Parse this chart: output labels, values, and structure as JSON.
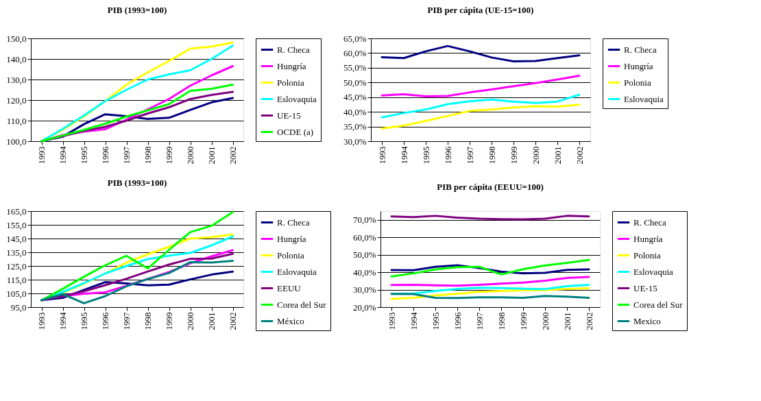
{
  "chart_data": [
    {
      "type": "line",
      "title": "PIB  (1993=100)",
      "categories": [
        "1993",
        "1994",
        "1995",
        "1996",
        "1997",
        "1998",
        "1999",
        "2000",
        "2001",
        "2002"
      ],
      "ylim": [
        100,
        150
      ],
      "yticks": [
        {
          "value": 100,
          "label": "100,0"
        },
        {
          "value": 110,
          "label": "110,0"
        },
        {
          "value": 120,
          "label": "120,0"
        },
        {
          "value": 130,
          "label": "130,0"
        },
        {
          "value": 140,
          "label": "140,0"
        },
        {
          "value": 150,
          "label": "150,0"
        }
      ],
      "grid": "y",
      "legend": "right",
      "marker": "none",
      "line_style": "solid",
      "series": [
        {
          "name": "R. Checa",
          "color": "#000080",
          "values": [
            100,
            102.2,
            108.3,
            113.1,
            112.2,
            110.8,
            111.4,
            115.2,
            118.9,
            121.0
          ]
        },
        {
          "name": "Hungría",
          "color": "#ff00ff",
          "values": [
            100,
            103.0,
            104.7,
            105.8,
            110.5,
            115.5,
            120.5,
            127.0,
            132.0,
            136.5
          ]
        },
        {
          "name": "Polonia",
          "color": "#ffff00",
          "values": [
            100,
            105.5,
            112.0,
            119.5,
            127.5,
            133.5,
            139.0,
            145.0,
            146.0,
            148.0
          ]
        },
        {
          "name": "Eslovaquia",
          "color": "#00ffff",
          "values": [
            100,
            106.0,
            112.5,
            119.5,
            125.0,
            130.0,
            132.5,
            134.5,
            140.0,
            146.5
          ]
        },
        {
          "name": "UE-15",
          "color": "#800080",
          "values": [
            100,
            102.5,
            105.0,
            107.0,
            110.0,
            113.5,
            116.5,
            120.5,
            122.5,
            124.0
          ]
        },
        {
          "name": "OCDE (a)",
          "color": "#00ff00",
          "values": [
            100,
            102.8,
            105.5,
            108.5,
            112.0,
            115.0,
            118.0,
            124.5,
            125.5,
            127.5
          ]
        }
      ]
    },
    {
      "type": "line",
      "title": "PIB per cápita  (UE-15=100)",
      "categories": [
        "1993",
        "1994",
        "1995",
        "1996",
        "1997",
        "1998",
        "1999",
        "2000",
        "2001",
        "2002"
      ],
      "ylim": [
        30,
        65
      ],
      "yticks": [
        {
          "value": 30,
          "label": "30,0%"
        },
        {
          "value": 35,
          "label": "35,0%"
        },
        {
          "value": 40,
          "label": "40,0%"
        },
        {
          "value": 45,
          "label": "45,0%"
        },
        {
          "value": 50,
          "label": "50,0%"
        },
        {
          "value": 55,
          "label": "55,0%"
        },
        {
          "value": 60,
          "label": "60,0%"
        },
        {
          "value": 65,
          "label": "65,0%"
        }
      ],
      "grid": "y",
      "legend": "right",
      "marker": "none",
      "line_style": "solid",
      "series": [
        {
          "name": "R. Checa",
          "color": "#000080",
          "values": [
            58.6,
            58.3,
            60.6,
            62.4,
            60.6,
            58.5,
            57.2,
            57.3,
            58.3,
            59.2
          ]
        },
        {
          "name": "Hungría",
          "color": "#ff00ff",
          "values": [
            45.6,
            46.0,
            45.3,
            45.4,
            46.6,
            47.6,
            48.7,
            49.8,
            51.0,
            52.3
          ]
        },
        {
          "name": "Polonia",
          "color": "#ffff00",
          "values": [
            34.3,
            35.3,
            36.9,
            38.6,
            40.3,
            40.8,
            41.5,
            41.9,
            41.8,
            42.4
          ]
        },
        {
          "name": "Eslovaquia",
          "color": "#00ffff",
          "values": [
            38.1,
            39.6,
            40.8,
            42.6,
            43.6,
            44.2,
            43.5,
            43.0,
            43.5,
            45.8
          ]
        }
      ]
    },
    {
      "type": "line",
      "title": "PIB  (1993=100)",
      "categories": [
        "1993",
        "1994",
        "1995",
        "1996",
        "1997",
        "1998",
        "1999",
        "2000",
        "2001",
        "2002"
      ],
      "ylim": [
        95,
        165
      ],
      "yticks": [
        {
          "value": 95,
          "label": "95,0"
        },
        {
          "value": 105,
          "label": "105,0"
        },
        {
          "value": 115,
          "label": "115,0"
        },
        {
          "value": 125,
          "label": "125,0"
        },
        {
          "value": 135,
          "label": "135,0"
        },
        {
          "value": 145,
          "label": "145,0"
        },
        {
          "value": 155,
          "label": "155,0"
        },
        {
          "value": 165,
          "label": "165,0"
        }
      ],
      "grid": "y",
      "legend": "right",
      "marker": "none",
      "line_style": "solid",
      "series": [
        {
          "name": "R. Checa",
          "color": "#000080",
          "values": [
            100,
            101.7,
            107.6,
            113.2,
            112.2,
            110.9,
            111.4,
            115.2,
            118.7,
            120.9
          ]
        },
        {
          "name": "Hungría",
          "color": "#ff00ff",
          "values": [
            100,
            103.0,
            104.7,
            105.8,
            110.5,
            115.5,
            120.5,
            127.0,
            132.0,
            136.5
          ]
        },
        {
          "name": "Polonia",
          "color": "#ffff00",
          "values": [
            100,
            105.5,
            112.0,
            119.5,
            127.5,
            133.5,
            139.0,
            145.0,
            146.0,
            148.0
          ]
        },
        {
          "name": "Eslovaquia",
          "color": "#00ffff",
          "values": [
            100,
            106.0,
            112.5,
            119.5,
            125.0,
            130.0,
            132.5,
            134.5,
            140.0,
            146.5
          ]
        },
        {
          "name": "EEUU",
          "color": "#800080",
          "values": [
            100,
            103.0,
            106.5,
            111.0,
            115.7,
            120.9,
            126.0,
            130.2,
            130.4,
            133.9
          ]
        },
        {
          "name": "Corea del Sur",
          "color": "#00ff00",
          "values": [
            100,
            108.3,
            117.2,
            125.5,
            132.4,
            123.2,
            136.7,
            149.7,
            154.3,
            164.2
          ]
        },
        {
          "name": "México",
          "color": "#008080",
          "values": [
            100,
            104.5,
            97.8,
            103.0,
            110.2,
            115.5,
            119.8,
            127.8,
            127.5,
            128.7
          ]
        }
      ]
    },
    {
      "type": "line",
      "title": "PIB per cápita  (EEUU=100)",
      "categories": [
        "1993",
        "1994",
        "1995",
        "1996",
        "1997",
        "1998",
        "1999",
        "2000",
        "2001",
        "2002"
      ],
      "ylim": [
        20,
        75
      ],
      "yticks": [
        {
          "value": 20,
          "label": "20,0%"
        },
        {
          "value": 30,
          "label": "30,0%"
        },
        {
          "value": 40,
          "label": "40,0%"
        },
        {
          "value": 50,
          "label": "50,0%"
        },
        {
          "value": 60,
          "label": "60,0%"
        },
        {
          "value": 70,
          "label": "70,0%"
        }
      ],
      "grid": "y",
      "legend": "right",
      "marker": "none",
      "line_style": "solid",
      "series": [
        {
          "name": "R. Checa",
          "color": "#000080",
          "values": [
            41.2,
            41.1,
            43.1,
            44.0,
            42.4,
            40.3,
            39.3,
            39.6,
            41.3,
            41.6
          ]
        },
        {
          "name": "Hungría",
          "color": "#ff00ff",
          "values": [
            32.7,
            32.8,
            32.5,
            32.3,
            32.8,
            33.5,
            34.0,
            35.1,
            36.7,
            37.3
          ]
        },
        {
          "name": "Polonia",
          "color": "#ffff00",
          "values": [
            24.7,
            25.3,
            26.7,
            27.7,
            28.7,
            29.2,
            29.6,
            29.7,
            30.4,
            30.8
          ]
        },
        {
          "name": "Eslovaquia",
          "color": "#00ffff",
          "values": [
            27.6,
            27.9,
            29.2,
            30.4,
            31.1,
            30.9,
            30.5,
            30.3,
            32.0,
            32.8
          ]
        },
        {
          "name": "UE-15",
          "color": "#800080",
          "values": [
            72.0,
            71.6,
            72.3,
            71.3,
            70.7,
            70.4,
            70.3,
            70.7,
            72.3,
            72.0
          ]
        },
        {
          "name": "Corea del Sur",
          "color": "#00ff00",
          "values": [
            37.6,
            39.3,
            41.6,
            42.9,
            43.1,
            38.7,
            41.7,
            43.9,
            45.3,
            47.0
          ]
        },
        {
          "name": "Mexico",
          "color": "#008080",
          "values": [
            27.6,
            27.5,
            25.3,
            25.2,
            25.6,
            25.6,
            25.3,
            26.4,
            26.0,
            25.3
          ]
        }
      ]
    }
  ]
}
